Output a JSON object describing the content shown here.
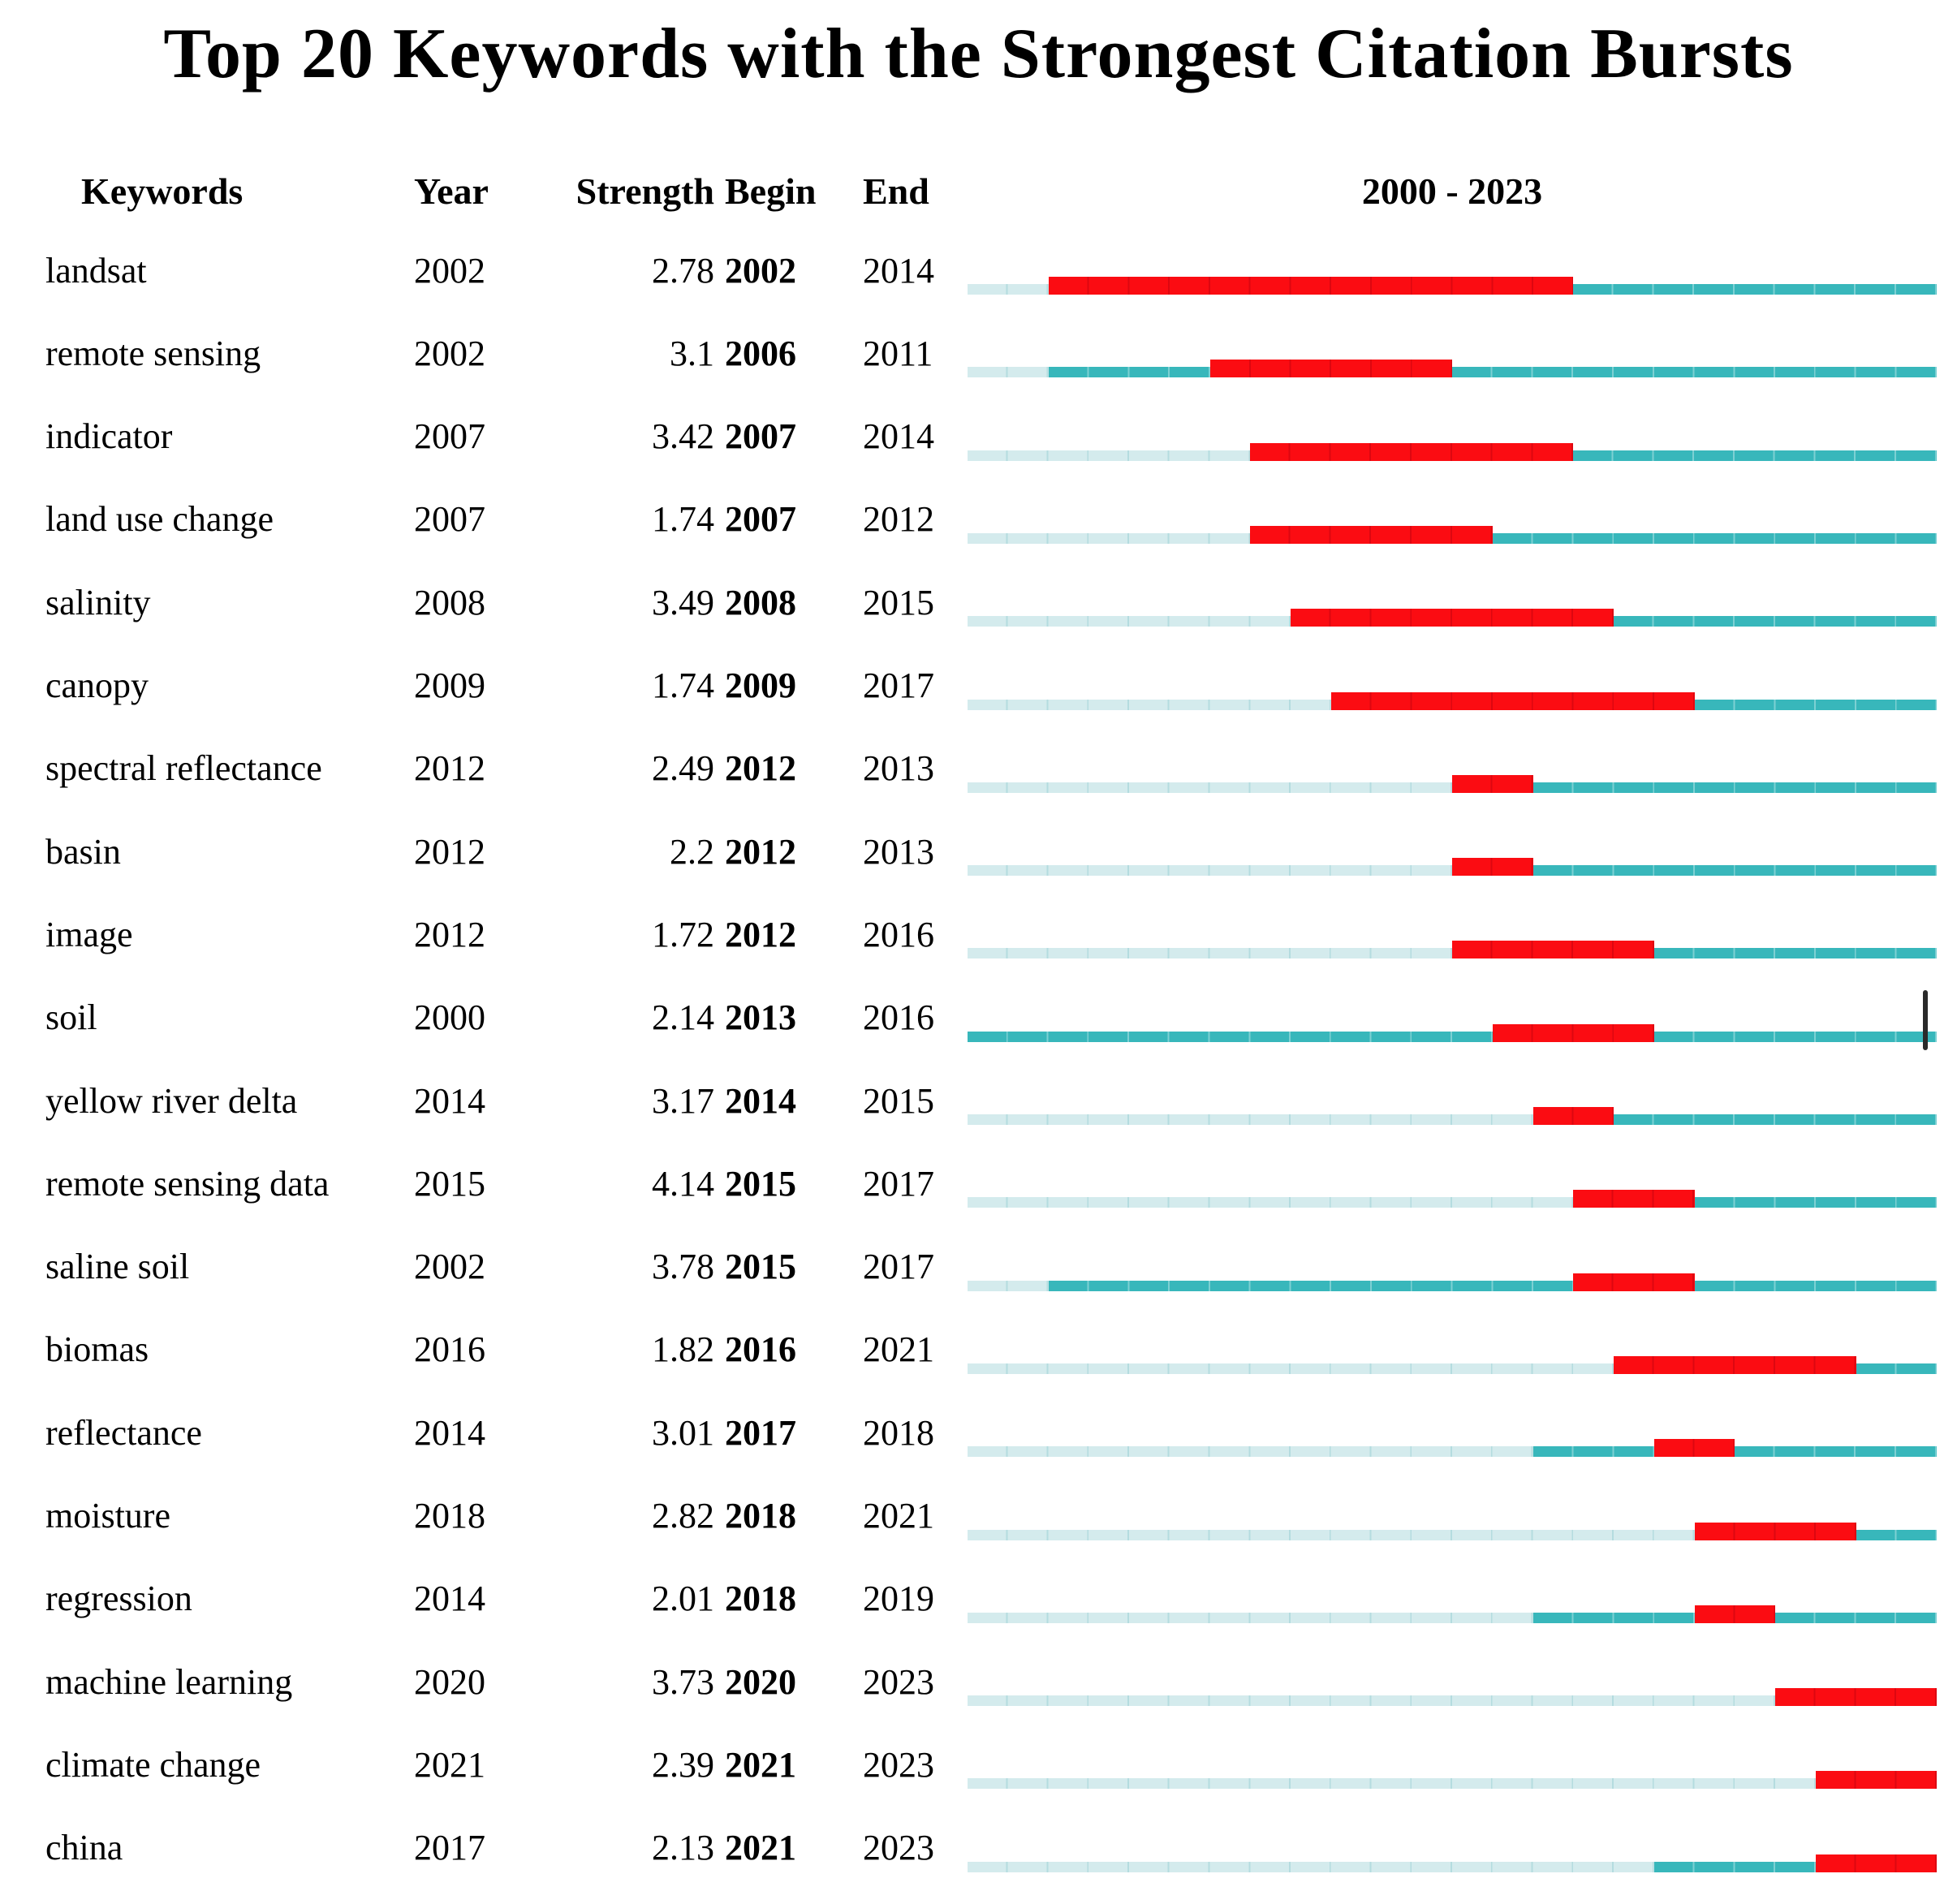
{
  "title": "Top 20 Keywords with the Strongest Citation Bursts",
  "header": {
    "keywords": "Keywords",
    "year": "Year",
    "strength": "Strength",
    "begin": "Begin",
    "end": "End",
    "range": "2000 - 2023"
  },
  "colors": {
    "burst_red": "#fb0c12",
    "active_teal": "#38b7bb",
    "inactive_light": "#d4ebed",
    "cursor_black": "#2a2a2a",
    "text": "#000000"
  },
  "artifact": {
    "cursor_after_keyword": "soil"
  },
  "chart_data": {
    "type": "table",
    "title": "Top 20 Keywords with the Strongest Citation Bursts",
    "columns": [
      "Keywords",
      "Year",
      "Strength",
      "Begin",
      "End"
    ],
    "x_range": [
      2000,
      2023
    ],
    "timeline_legend": {
      "red": "citation burst interval (Begin-End)",
      "teal": "keyword active years",
      "light": "years before first appearance"
    },
    "rows": [
      {
        "keyword": "landsat",
        "year": "2002",
        "strength": "2.78",
        "begin": "2002",
        "end": "2014"
      },
      {
        "keyword": "remote sensing",
        "year": "2002",
        "strength": "3.1",
        "begin": "2006",
        "end": "2011"
      },
      {
        "keyword": "indicator",
        "year": "2007",
        "strength": "3.42",
        "begin": "2007",
        "end": "2014"
      },
      {
        "keyword": "land use change",
        "year": "2007",
        "strength": "1.74",
        "begin": "2007",
        "end": "2012"
      },
      {
        "keyword": "salinity",
        "year": "2008",
        "strength": "3.49",
        "begin": "2008",
        "end": "2015"
      },
      {
        "keyword": "canopy",
        "year": "2009",
        "strength": "1.74",
        "begin": "2009",
        "end": "2017"
      },
      {
        "keyword": "spectral reflectance",
        "year": "2012",
        "strength": "2.49",
        "begin": "2012",
        "end": "2013"
      },
      {
        "keyword": "basin",
        "year": "2012",
        "strength": "2.2",
        "begin": "2012",
        "end": "2013"
      },
      {
        "keyword": "image",
        "year": "2012",
        "strength": "1.72",
        "begin": "2012",
        "end": "2016"
      },
      {
        "keyword": "soil",
        "year": "2000",
        "strength": "2.14",
        "begin": "2013",
        "end": "2016"
      },
      {
        "keyword": "yellow river delta",
        "year": "2014",
        "strength": "3.17",
        "begin": "2014",
        "end": "2015"
      },
      {
        "keyword": "remote sensing data",
        "year": "2015",
        "strength": "4.14",
        "begin": "2015",
        "end": "2017"
      },
      {
        "keyword": "saline soil",
        "year": "2002",
        "strength": "3.78",
        "begin": "2015",
        "end": "2017"
      },
      {
        "keyword": "biomas",
        "year": "2016",
        "strength": "1.82",
        "begin": "2016",
        "end": "2021"
      },
      {
        "keyword": "reflectance",
        "year": "2014",
        "strength": "3.01",
        "begin": "2017",
        "end": "2018"
      },
      {
        "keyword": "moisture",
        "year": "2018",
        "strength": "2.82",
        "begin": "2018",
        "end": "2021"
      },
      {
        "keyword": "regression",
        "year": "2014",
        "strength": "2.01",
        "begin": "2018",
        "end": "2019"
      },
      {
        "keyword": "machine learning",
        "year": "2020",
        "strength": "3.73",
        "begin": "2020",
        "end": "2023"
      },
      {
        "keyword": "climate change",
        "year": "2021",
        "strength": "2.39",
        "begin": "2021",
        "end": "2023"
      },
      {
        "keyword": "china",
        "year": "2017",
        "strength": "2.13",
        "begin": "2021",
        "end": "2023"
      }
    ]
  }
}
